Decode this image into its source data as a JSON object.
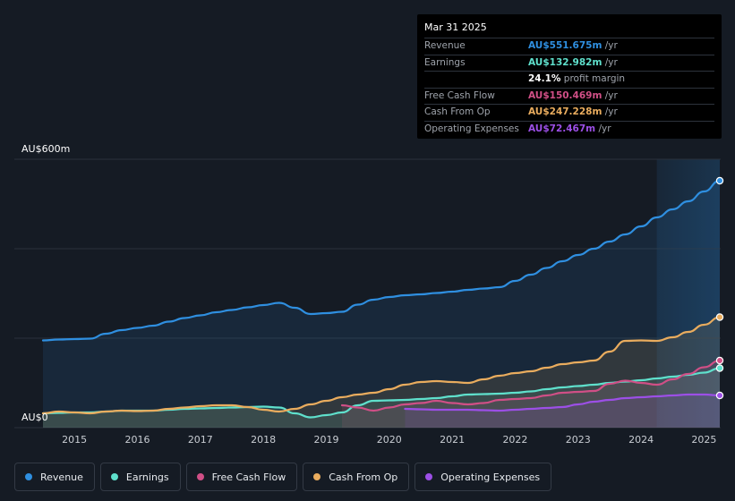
{
  "tooltip": {
    "date": "Mar 31 2025",
    "rows": [
      {
        "label": "Revenue",
        "value": "AU$551.675m",
        "unit": "/yr",
        "color": "#2f8fe0"
      },
      {
        "label": "Earnings",
        "value": "AU$132.982m",
        "unit": "/yr",
        "color": "#5fe0cc"
      },
      {
        "label": "",
        "value": "24.1%",
        "unit": "profit margin",
        "color": "#ffffff"
      },
      {
        "label": "Free Cash Flow",
        "value": "AU$150.469m",
        "unit": "/yr",
        "color": "#d04f86"
      },
      {
        "label": "Cash From Op",
        "value": "AU$247.228m",
        "unit": "/yr",
        "color": "#e9ac5e"
      },
      {
        "label": "Operating Expenses",
        "value": "AU$72.467m",
        "unit": "/yr",
        "color": "#9c4fe6"
      }
    ]
  },
  "legend": [
    {
      "label": "Revenue",
      "color": "#2f8fe0"
    },
    {
      "label": "Earnings",
      "color": "#5fe0cc"
    },
    {
      "label": "Free Cash Flow",
      "color": "#d04f86"
    },
    {
      "label": "Cash From Op",
      "color": "#e9ac5e"
    },
    {
      "label": "Operating Expenses",
      "color": "#9c4fe6"
    }
  ],
  "chart_data": {
    "type": "area",
    "title": "",
    "xlabel": "",
    "ylabel": "",
    "y_top_label": "AU$600m",
    "y_bottom_label": "AU$0",
    "ylim": [
      0,
      600
    ],
    "xlim": [
      2014.5,
      2025.25
    ],
    "x_ticks": [
      "2015",
      "2016",
      "2017",
      "2018",
      "2019",
      "2020",
      "2021",
      "2022",
      "2023",
      "2024",
      "2025"
    ],
    "highlight_from": 2024.25,
    "series": [
      {
        "name": "Revenue",
        "color": "#2f8fe0",
        "x": [
          2014.5,
          2014.75,
          2015.0,
          2015.25,
          2015.5,
          2015.75,
          2016.0,
          2016.25,
          2016.5,
          2016.75,
          2017.0,
          2017.25,
          2017.5,
          2017.75,
          2018.0,
          2018.25,
          2018.5,
          2018.75,
          2019.0,
          2019.25,
          2019.5,
          2019.75,
          2020.0,
          2020.25,
          2020.5,
          2020.75,
          2021.0,
          2021.25,
          2021.5,
          2021.75,
          2022.0,
          2022.25,
          2022.5,
          2022.75,
          2023.0,
          2023.25,
          2023.5,
          2023.75,
          2024.0,
          2024.25,
          2024.5,
          2024.75,
          2025.0,
          2025.25
        ],
        "values": [
          195,
          197,
          198,
          199,
          210,
          218,
          223,
          228,
          237,
          245,
          251,
          258,
          263,
          269,
          274,
          279,
          268,
          254,
          256,
          259,
          275,
          286,
          292,
          296,
          298,
          301,
          304,
          308,
          311,
          314,
          328,
          342,
          357,
          372,
          386,
          400,
          416,
          432,
          450,
          470,
          488,
          506,
          528,
          552
        ]
      },
      {
        "name": "Earnings",
        "color": "#5fe0cc",
        "x": [
          2014.5,
          2014.75,
          2015.0,
          2015.25,
          2015.5,
          2015.75,
          2016.0,
          2016.25,
          2016.5,
          2016.75,
          2017.0,
          2017.25,
          2017.5,
          2017.75,
          2018.0,
          2018.25,
          2018.5,
          2018.75,
          2019.0,
          2019.25,
          2019.5,
          2019.75,
          2020.0,
          2020.25,
          2020.5,
          2020.75,
          2021.0,
          2021.25,
          2021.5,
          2021.75,
          2022.0,
          2022.25,
          2022.5,
          2022.75,
          2023.0,
          2023.25,
          2023.5,
          2023.75,
          2024.0,
          2024.25,
          2024.5,
          2024.75,
          2025.0,
          2025.25
        ],
        "values": [
          32,
          33,
          34,
          34,
          36,
          38,
          38,
          38,
          40,
          42,
          43,
          44,
          45,
          46,
          47,
          45,
          32,
          23,
          28,
          34,
          50,
          60,
          61,
          62,
          64,
          66,
          70,
          74,
          75,
          76,
          78,
          81,
          86,
          90,
          93,
          96,
          100,
          103,
          106,
          110,
          114,
          118,
          123,
          133
        ]
      },
      {
        "name": "Free Cash Flow",
        "color": "#d04f86",
        "x": [
          2019.25,
          2019.5,
          2019.75,
          2020.0,
          2020.25,
          2020.5,
          2020.75,
          2021.0,
          2021.25,
          2021.5,
          2021.75,
          2022.0,
          2022.25,
          2022.5,
          2022.75,
          2023.0,
          2023.25,
          2023.5,
          2023.75,
          2024.0,
          2024.25,
          2024.5,
          2024.75,
          2025.0,
          2025.25
        ],
        "values": [
          50,
          45,
          38,
          45,
          52,
          55,
          60,
          55,
          52,
          55,
          62,
          64,
          66,
          72,
          78,
          80,
          82,
          98,
          105,
          100,
          96,
          108,
          120,
          135,
          150
        ]
      },
      {
        "name": "Cash From Op",
        "color": "#e9ac5e",
        "x": [
          2014.5,
          2014.75,
          2015.0,
          2015.25,
          2015.5,
          2015.75,
          2016.0,
          2016.25,
          2016.5,
          2016.75,
          2017.0,
          2017.25,
          2017.5,
          2017.75,
          2018.0,
          2018.25,
          2018.5,
          2018.75,
          2019.0,
          2019.25,
          2019.5,
          2019.75,
          2020.0,
          2020.25,
          2020.5,
          2020.75,
          2021.0,
          2021.25,
          2021.5,
          2021.75,
          2022.0,
          2022.25,
          2022.5,
          2022.75,
          2023.0,
          2023.25,
          2023.5,
          2023.75,
          2024.0,
          2024.25,
          2024.5,
          2024.75,
          2025.0,
          2025.25
        ],
        "values": [
          32,
          36,
          34,
          32,
          36,
          38,
          37,
          38,
          42,
          45,
          48,
          50,
          50,
          46,
          40,
          36,
          42,
          52,
          60,
          68,
          74,
          78,
          86,
          96,
          102,
          104,
          102,
          100,
          108,
          116,
          122,
          126,
          134,
          142,
          146,
          150,
          170,
          194,
          195,
          194,
          202,
          214,
          230,
          247
        ]
      },
      {
        "name": "Operating Expenses",
        "color": "#9c4fe6",
        "x": [
          2020.25,
          2020.5,
          2020.75,
          2021.0,
          2021.25,
          2021.5,
          2021.75,
          2022.0,
          2022.25,
          2022.5,
          2022.75,
          2023.0,
          2023.25,
          2023.5,
          2023.75,
          2024.0,
          2024.25,
          2024.5,
          2024.75,
          2025.0,
          2025.25
        ],
        "values": [
          42,
          41,
          40,
          40,
          40,
          39,
          38,
          40,
          42,
          44,
          46,
          52,
          58,
          62,
          66,
          68,
          70,
          72,
          74,
          74,
          72
        ]
      }
    ]
  }
}
